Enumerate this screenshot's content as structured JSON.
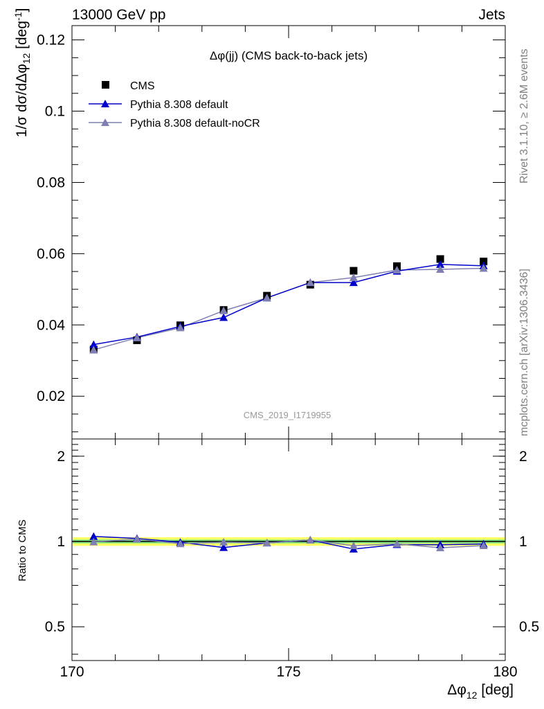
{
  "header": {
    "left": "13000 GeV pp",
    "right": "Jets"
  },
  "side_text": {
    "rivet": "Rivet 3.1.10, ≥ 2.6M events",
    "mcplots": "mcplots.cern.ch [arXiv:1306.3436]"
  },
  "chart_data": {
    "type": "scatter",
    "title": "Δφ(jj) (CMS back-to-back jets)",
    "analysis_id": "CMS_2019_I1719955",
    "xlabel": "Δφ12 [deg]",
    "ylabel": "1/σ dσ/dΔφ12 [deg-1]",
    "xlim": [
      170,
      180
    ],
    "ylim": [
      0.008,
      0.124
    ],
    "x_ticks": [
      "170",
      "175",
      "180"
    ],
    "y_ticks": [
      "0.02",
      "0.04",
      "0.06",
      "0.08",
      "0.1",
      "0.12"
    ],
    "x": [
      170.5,
      171.5,
      172.5,
      173.5,
      174.5,
      175.5,
      176.5,
      177.5,
      178.5,
      179.5
    ],
    "series": [
      {
        "name": "CMS",
        "marker": "square",
        "color": "#000000",
        "values": [
          0.0331,
          0.0357,
          0.0399,
          0.0442,
          0.0482,
          0.0513,
          0.0552,
          0.0565,
          0.0585,
          0.0578
        ]
      },
      {
        "name": "Pythia 8.308 default",
        "marker": "triangle",
        "color": "#0000cc",
        "values": [
          0.0345,
          0.0366,
          0.0396,
          0.0421,
          0.0476,
          0.0519,
          0.0519,
          0.0551,
          0.057,
          0.0566
        ]
      },
      {
        "name": "Pythia 8.308 default-noCR",
        "marker": "triangle",
        "color": "#7f7fb2",
        "values": [
          0.033,
          0.0364,
          0.0392,
          0.044,
          0.0476,
          0.0519,
          0.0533,
          0.0554,
          0.0556,
          0.0559
        ]
      }
    ],
    "ratio": {
      "ylabel": "Ratio to CMS",
      "ylim": [
        0.38,
        2.3
      ],
      "y_ticks": [
        "0.5",
        "1",
        "2"
      ],
      "band": {
        "inner": [
          0.985,
          1.015
        ],
        "outer": [
          0.965,
          1.035
        ]
      },
      "series": [
        {
          "name": "Pythia 8.308 default",
          "values": [
            1.042,
            1.025,
            0.993,
            0.952,
            0.988,
            1.012,
            0.94,
            0.975,
            0.974,
            0.979
          ]
        },
        {
          "name": "Pythia 8.308 default-noCR",
          "values": [
            0.997,
            1.02,
            0.982,
            0.995,
            0.988,
            1.012,
            0.966,
            0.981,
            0.95,
            0.967
          ]
        }
      ]
    },
    "colors": {
      "band_outer": "#ffff66",
      "band_inner": "#7fe57f",
      "ref_line": "#000000"
    }
  }
}
